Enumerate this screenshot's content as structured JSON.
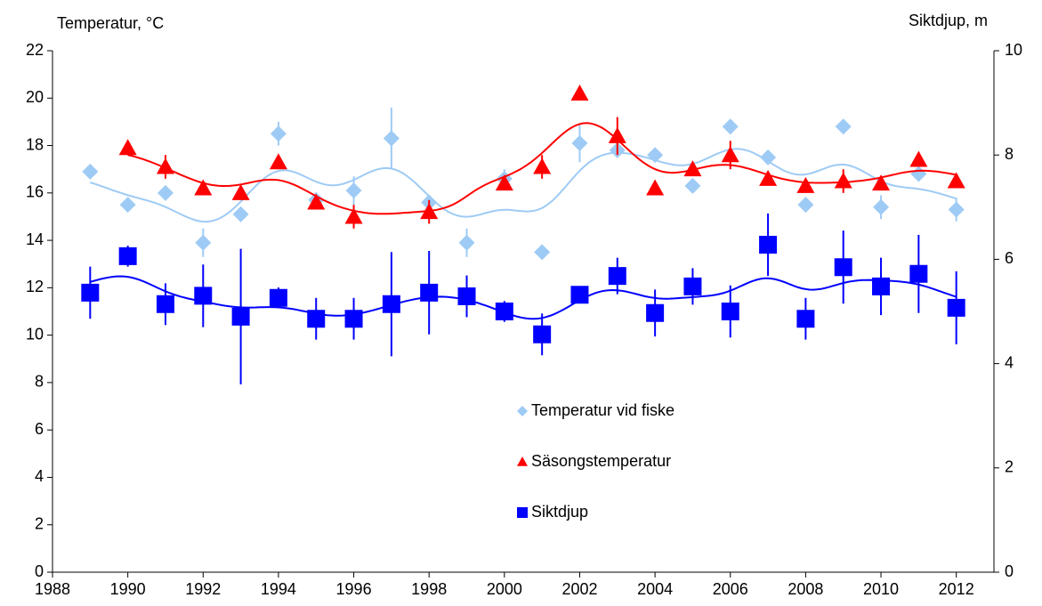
{
  "chart_data": {
    "type": "scatter",
    "y_label": "Temperatur, °C",
    "y2_label": "Siktdjup, m",
    "x": [
      1989,
      1990,
      1991,
      1992,
      1993,
      1994,
      1995,
      1996,
      1997,
      1998,
      1999,
      2000,
      2001,
      2002,
      2003,
      2004,
      2005,
      2006,
      2007,
      2008,
      2009,
      2010,
      2011,
      2012
    ],
    "xlim": [
      1988,
      2013
    ],
    "xticks": [
      1988,
      1990,
      1992,
      1994,
      1996,
      1998,
      2000,
      2002,
      2004,
      2006,
      2008,
      2010,
      2012
    ],
    "ylim": [
      0,
      22
    ],
    "yticks": [
      0,
      2,
      4,
      6,
      8,
      10,
      12,
      14,
      16,
      18,
      20,
      22
    ],
    "y2lim": [
      0,
      10
    ],
    "y2ticks": [
      0,
      2,
      4,
      6,
      8,
      10
    ],
    "series": [
      {
        "name": "Temperatur vid fiske",
        "color": "#9ecbf5",
        "marker": "diamond",
        "values": [
          16.9,
          15.5,
          16.0,
          13.9,
          15.1,
          18.5,
          15.7,
          16.1,
          18.3,
          15.6,
          13.9,
          16.6,
          13.5,
          18.1,
          17.8,
          17.6,
          16.3,
          18.8,
          17.5,
          15.5,
          18.8,
          15.4,
          16.8,
          15.3
        ],
        "errors": [
          null,
          null,
          null,
          0.6,
          null,
          0.5,
          null,
          0.6,
          1.3,
          null,
          0.6,
          0.4,
          null,
          0.8,
          null,
          null,
          null,
          null,
          null,
          null,
          null,
          0.5,
          null,
          0.5
        ]
      },
      {
        "name": "Säsongstemperatur",
        "color": "#ff0000",
        "marker": "triangle",
        "values": [
          null,
          17.9,
          17.1,
          16.2,
          16.0,
          17.3,
          15.6,
          15.0,
          null,
          15.2,
          null,
          16.4,
          17.1,
          20.2,
          18.4,
          16.2,
          17.0,
          17.6,
          16.6,
          16.3,
          16.5,
          16.4,
          17.4,
          16.5
        ],
        "errors": [
          null,
          null,
          0.5,
          null,
          null,
          null,
          null,
          0.5,
          null,
          0.5,
          null,
          null,
          0.5,
          null,
          0.8,
          null,
          null,
          0.6,
          null,
          null,
          0.5,
          null,
          null,
          null
        ]
      },
      {
        "name": "Siktdjup",
        "color": "#0000ff",
        "marker": "square",
        "axis": "y2",
        "values": [
          5.36,
          6.06,
          5.14,
          5.3,
          4.9,
          5.26,
          4.86,
          4.86,
          5.14,
          5.36,
          5.29,
          5.0,
          4.56,
          5.32,
          5.68,
          4.97,
          5.48,
          5.0,
          6.28,
          4.86,
          5.85,
          5.48,
          5.72,
          5.07
        ],
        "errors": [
          0.5,
          0.2,
          0.4,
          0.6,
          1.3,
          0.2,
          0.4,
          0.4,
          1.0,
          0.8,
          0.4,
          0.2,
          0.4,
          null,
          0.35,
          0.45,
          0.35,
          0.5,
          0.6,
          0.4,
          0.7,
          0.55,
          0.75,
          0.7
        ]
      }
    ]
  }
}
